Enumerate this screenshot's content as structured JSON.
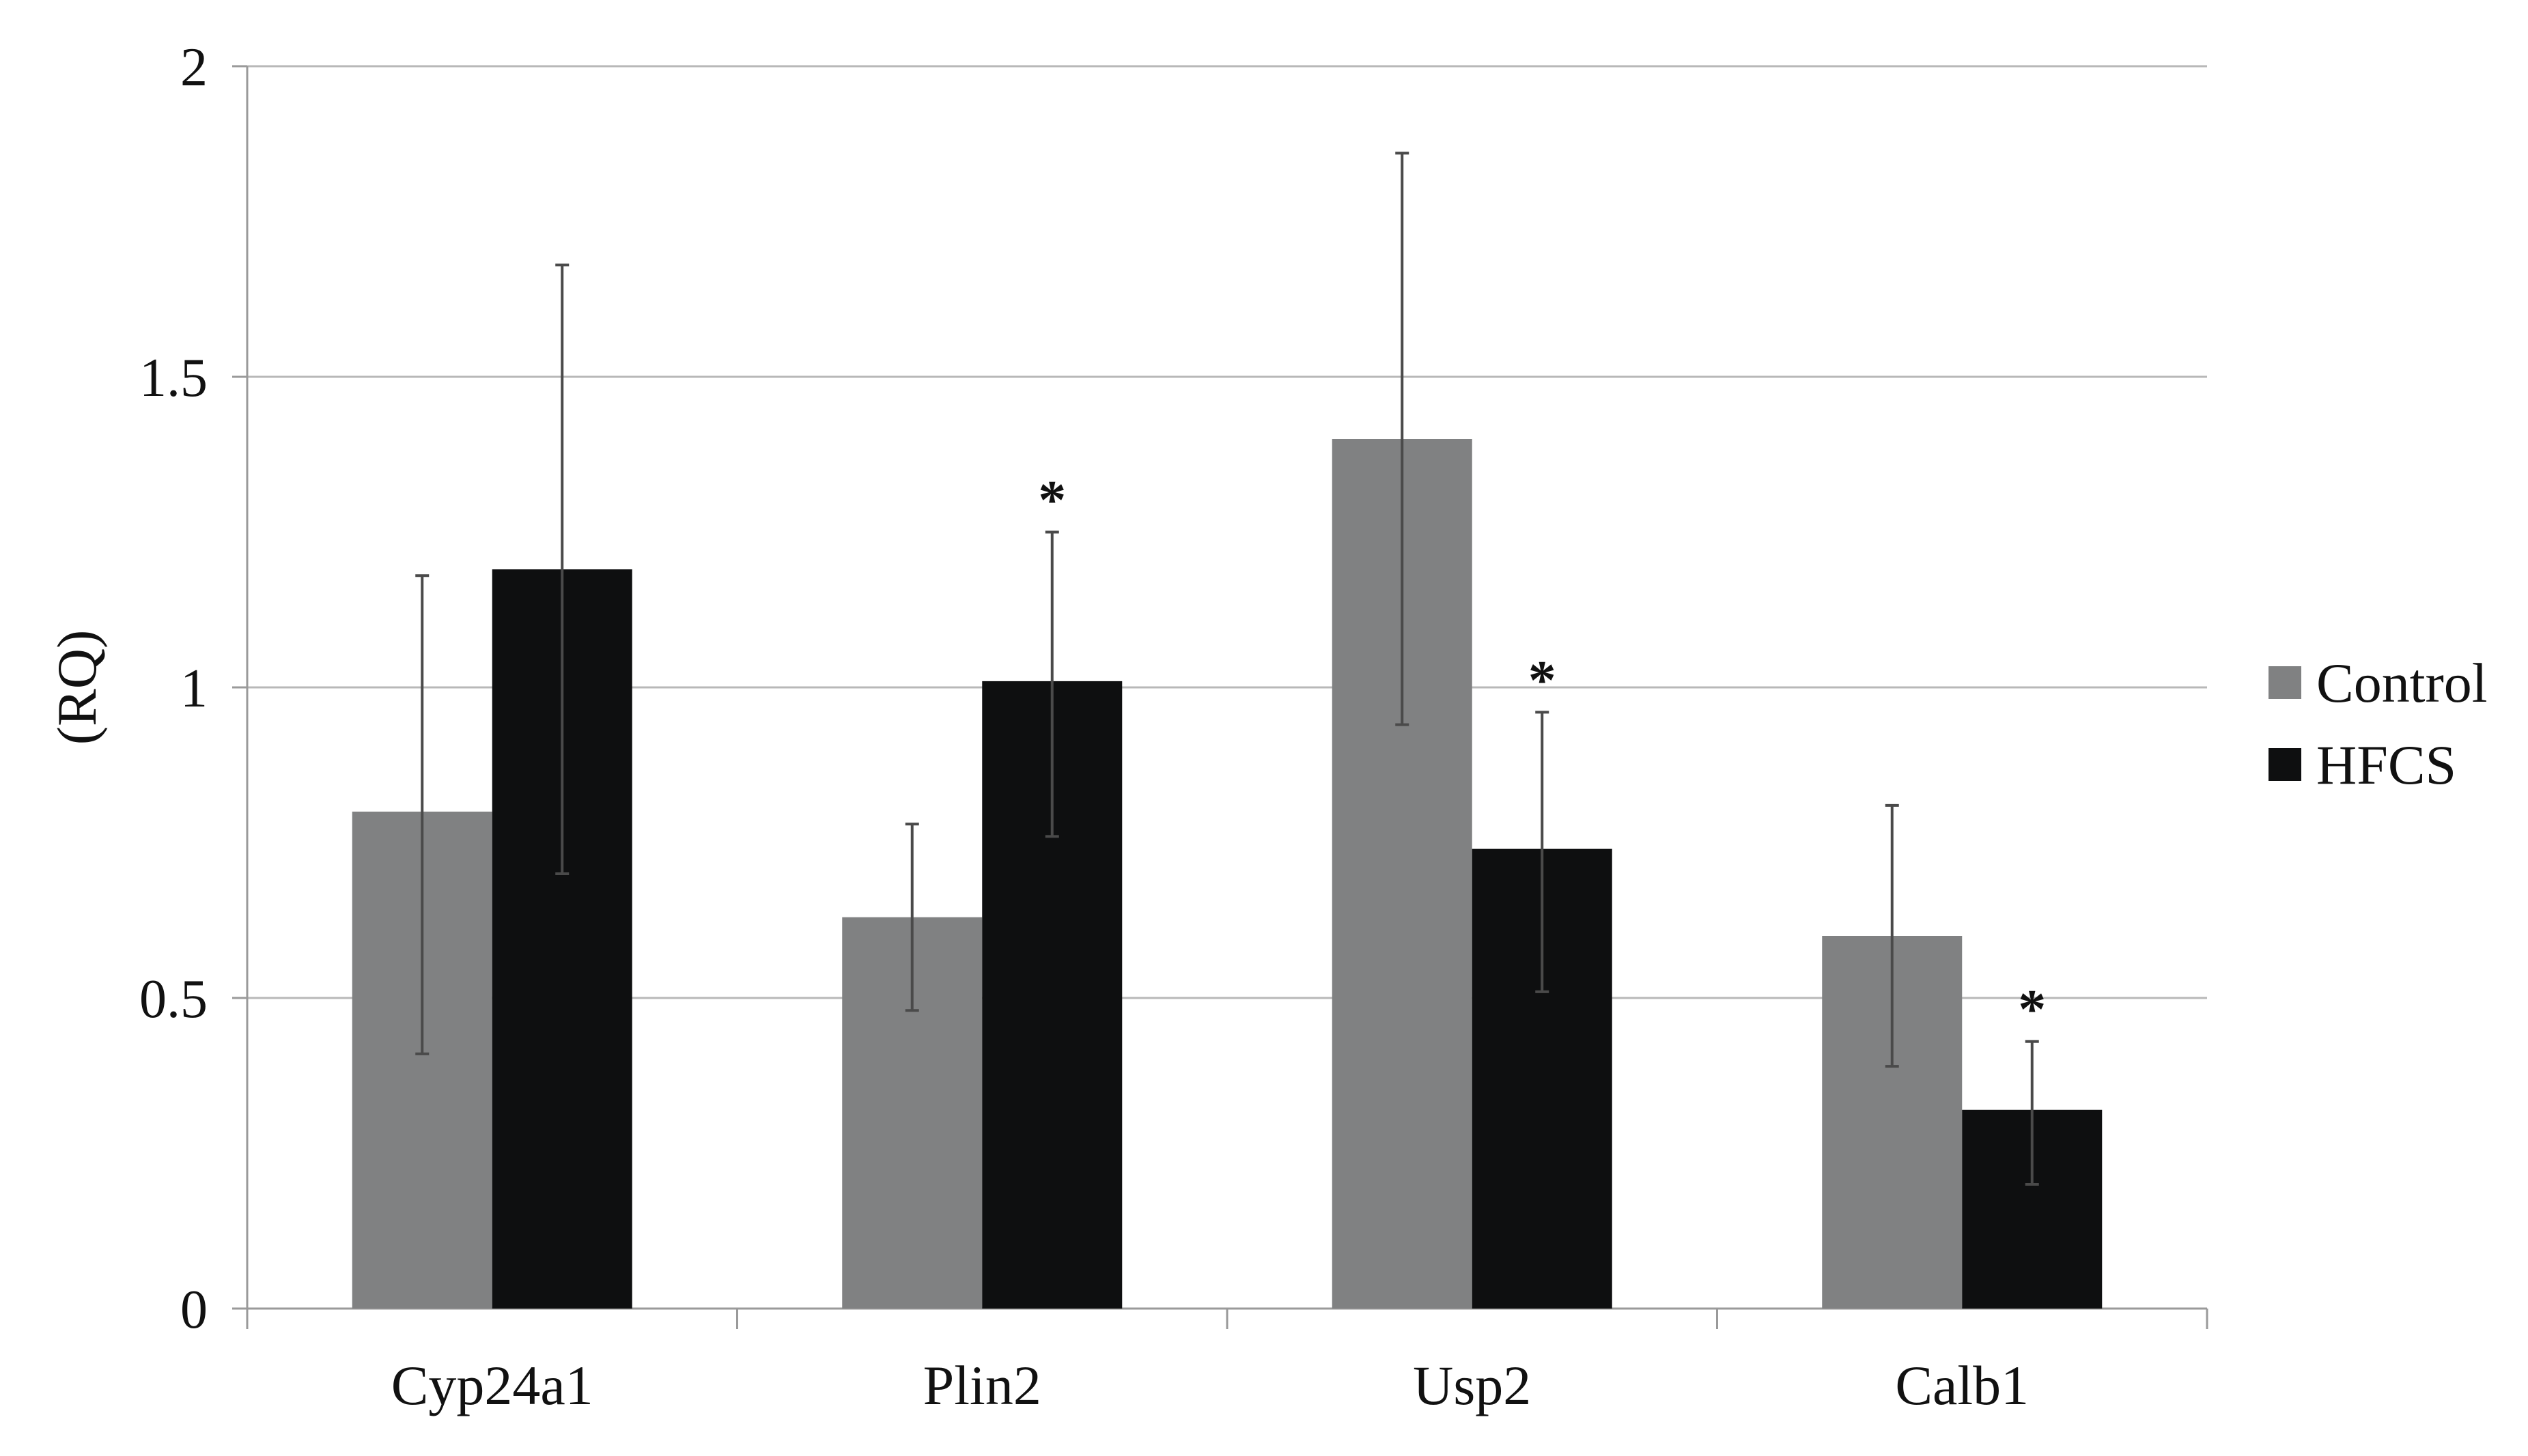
{
  "chart_data": {
    "type": "bar",
    "title": "",
    "xlabel": "",
    "ylabel": "(RQ)",
    "ylim": [
      0,
      2
    ],
    "yticks": [
      0,
      0.5,
      1,
      1.5,
      2
    ],
    "ytick_labels": [
      "0",
      "0.5",
      "1",
      "1.5",
      "2"
    ],
    "grid": true,
    "legend_position": "right",
    "categories": [
      "Cyp24a1",
      "Plin2",
      "Usp2",
      "Calb1"
    ],
    "series": [
      {
        "name": "Control",
        "color": "#808182",
        "values": [
          0.8,
          0.63,
          1.4,
          0.6
        ],
        "error_low": [
          0.41,
          0.48,
          0.94,
          0.39
        ],
        "error_high": [
          1.18,
          0.78,
          1.86,
          0.81
        ],
        "significance": [
          "",
          "",
          "",
          ""
        ]
      },
      {
        "name": "HFCS",
        "color": "#0e0f10",
        "values": [
          1.19,
          1.01,
          0.74,
          0.32
        ],
        "error_low": [
          0.7,
          0.76,
          0.51,
          0.2
        ],
        "error_high": [
          1.68,
          1.25,
          0.96,
          0.43
        ],
        "significance": [
          "",
          "*",
          "*",
          "*"
        ]
      }
    ]
  }
}
